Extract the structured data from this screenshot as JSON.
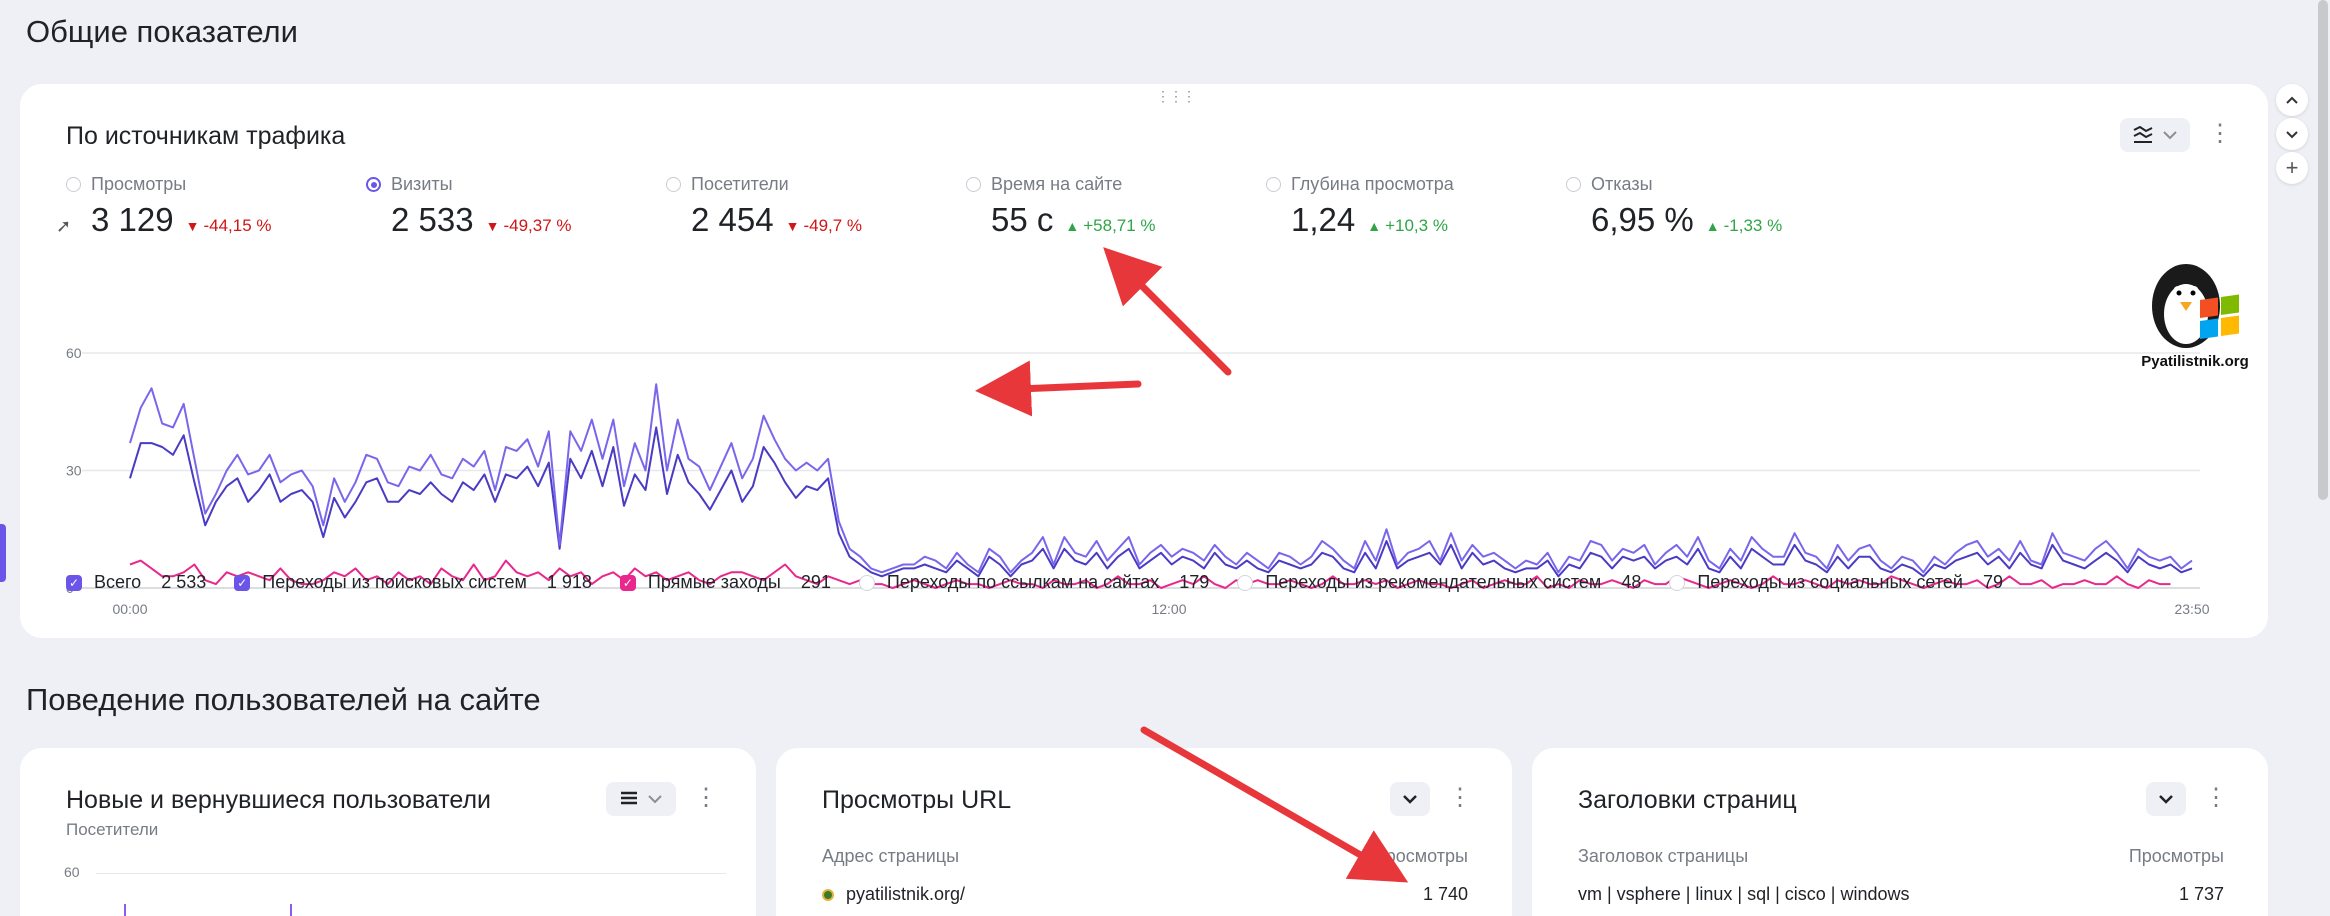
{
  "section1_title": "Общие показатели",
  "card1": {
    "title": "По источникам трафика",
    "metrics": [
      {
        "label": "Просмотры",
        "value": "3 129",
        "change": "-44,15 %",
        "dir": "down",
        "selected": false
      },
      {
        "label": "Визиты",
        "value": "2 533",
        "change": "-49,37 %",
        "dir": "down",
        "selected": true
      },
      {
        "label": "Посетители",
        "value": "2 454",
        "change": "-49,7 %",
        "dir": "down",
        "selected": false
      },
      {
        "label": "Время на сайте",
        "value": "55 с",
        "change": "+58,71 %",
        "dir": "up",
        "selected": false
      },
      {
        "label": "Глубина просмотра",
        "value": "1,24",
        "change": "+10,3 %",
        "dir": "up",
        "selected": false
      },
      {
        "label": "Отказы",
        "value": "6,95 %",
        "change": "-1,33 %",
        "dir": "up",
        "selected": false
      }
    ],
    "legend": [
      {
        "label": "Всего",
        "count": "2 533",
        "checked": true,
        "color": "#6a55e8"
      },
      {
        "label": "Переходы из поисковых систем",
        "count": "1 918",
        "checked": true,
        "color": "#6a55e8"
      },
      {
        "label": "Прямые заходы",
        "count": "291",
        "checked": true,
        "color": "#e8288c"
      },
      {
        "label": "Переходы по ссылкам на сайтах",
        "count": "179",
        "checked": false,
        "color": "#d2d5da"
      },
      {
        "label": "Переходы из рекомендательных систем",
        "count": "48",
        "checked": false,
        "color": "#d2d5da"
      },
      {
        "label": "Переходы из социальных сетей",
        "count": "79",
        "checked": false,
        "color": "#d2d5da"
      }
    ]
  },
  "chart_data": {
    "type": "line",
    "y_ticks": [
      "60",
      "30",
      "0"
    ],
    "x_ticks": [
      "00:00",
      "12:00",
      "23:50"
    ],
    "ylim": [
      0,
      60
    ],
    "grid": true,
    "series": [
      {
        "name": "Всего",
        "color": "#7a66ec",
        "values": [
          37,
          46,
          51,
          42,
          41,
          47,
          33,
          19,
          24,
          30,
          34,
          29,
          30,
          34,
          27,
          29,
          30,
          26,
          16,
          28,
          22,
          27,
          34,
          33,
          27,
          26,
          31,
          30,
          34,
          29,
          28,
          33,
          31,
          35,
          25,
          36,
          35,
          38,
          31,
          40,
          11,
          40,
          35,
          43,
          33,
          43,
          26,
          37,
          30,
          52,
          30,
          43,
          33,
          31,
          25,
          31,
          37,
          28,
          33,
          44,
          38,
          33,
          30,
          32,
          30,
          33,
          17,
          10,
          8,
          5,
          4,
          5,
          6,
          6,
          8,
          7,
          5,
          9,
          6,
          4,
          10,
          8,
          4,
          7,
          9,
          13,
          6,
          13,
          9,
          8,
          12,
          7,
          10,
          13,
          6,
          9,
          11,
          8,
          10,
          9,
          7,
          11,
          8,
          6,
          9,
          7,
          5,
          9,
          8,
          6,
          8,
          12,
          10,
          7,
          5,
          12,
          7,
          15,
          6,
          9,
          10,
          12,
          7,
          14,
          7,
          11,
          8,
          9,
          7,
          5,
          7,
          6,
          9,
          4,
          8,
          7,
          12,
          11,
          7,
          10,
          9,
          11,
          6,
          9,
          11,
          8,
          13,
          7,
          5,
          10,
          7,
          13,
          10,
          8,
          8,
          14,
          9,
          8,
          5,
          11,
          7,
          10,
          11,
          7,
          5,
          8,
          7,
          4,
          8,
          6,
          9,
          11,
          12,
          8,
          10,
          7,
          12,
          7,
          6,
          14,
          9,
          8,
          7,
          10,
          12,
          9,
          5,
          10,
          8,
          7,
          8,
          5,
          7
        ]
      },
      {
        "name": "Переходы из поисковых систем",
        "color": "#4a3bc4",
        "values": [
          28,
          37,
          37,
          36,
          34,
          39,
          27,
          16,
          22,
          26,
          28,
          22,
          25,
          29,
          22,
          24,
          25,
          22,
          13,
          23,
          18,
          22,
          27,
          28,
          22,
          22,
          25,
          24,
          27,
          24,
          22,
          27,
          25,
          29,
          22,
          29,
          28,
          31,
          26,
          32,
          10,
          33,
          28,
          35,
          26,
          36,
          21,
          29,
          25,
          41,
          24,
          34,
          27,
          24,
          20,
          25,
          30,
          22,
          26,
          36,
          32,
          27,
          23,
          26,
          25,
          28,
          14,
          8,
          6,
          4,
          3,
          4,
          5,
          5,
          6,
          5,
          4,
          7,
          5,
          3,
          8,
          6,
          3,
          6,
          7,
          10,
          5,
          10,
          7,
          6,
          9,
          5,
          8,
          10,
          5,
          7,
          9,
          6,
          8,
          7,
          5,
          9,
          6,
          5,
          7,
          5,
          4,
          7,
          6,
          5,
          6,
          9,
          8,
          5,
          4,
          9,
          5,
          12,
          5,
          7,
          8,
          9,
          6,
          11,
          5,
          9,
          6,
          7,
          5,
          4,
          5,
          5,
          7,
          3,
          6,
          5,
          9,
          8,
          5,
          8,
          7,
          8,
          5,
          7,
          8,
          6,
          10,
          5,
          4,
          8,
          5,
          10,
          8,
          6,
          6,
          11,
          7,
          6,
          4,
          8,
          5,
          8,
          8,
          5,
          4,
          6,
          5,
          3,
          6,
          5,
          7,
          8,
          9,
          6,
          8,
          5,
          9,
          6,
          5,
          11,
          7,
          6,
          5,
          7,
          9,
          7,
          4,
          8,
          6,
          5,
          6,
          4,
          5
        ]
      },
      {
        "name": "Прямые заходы",
        "color": "#e8288c",
        "values": [
          6,
          7,
          5,
          3,
          3,
          4,
          6,
          2,
          1,
          4,
          3,
          4,
          3,
          2,
          5,
          2,
          1,
          1,
          2,
          4,
          3,
          5,
          2,
          3,
          1,
          4,
          2,
          3,
          1,
          5,
          3,
          2,
          6,
          2,
          3,
          7,
          4,
          3,
          4,
          2,
          5,
          3,
          4,
          1,
          3,
          4,
          2,
          5,
          3,
          4,
          2,
          3,
          4,
          2,
          1,
          3,
          4,
          4,
          3,
          2,
          4,
          6,
          3,
          2,
          1,
          3,
          2,
          1,
          2,
          1,
          1,
          0,
          1,
          2,
          1,
          0,
          1,
          2,
          1,
          1,
          0,
          1,
          2,
          1,
          1,
          0,
          2,
          1,
          1,
          2,
          0,
          1,
          3,
          1,
          1,
          2,
          0,
          1,
          2,
          1,
          3,
          1,
          0,
          2,
          1,
          2,
          1,
          1,
          2,
          1,
          0,
          1,
          3,
          1,
          1,
          2,
          1,
          2,
          0,
          1,
          2,
          1,
          1,
          0,
          1,
          2,
          0,
          1,
          2,
          1,
          1,
          3,
          0,
          1,
          0,
          2,
          1,
          1,
          2,
          1,
          0,
          2,
          1,
          1,
          3,
          2,
          1,
          0,
          1,
          2,
          1,
          0,
          1,
          3,
          1,
          1,
          2,
          1,
          0,
          2,
          1,
          2,
          1,
          1,
          3,
          2,
          1,
          0,
          1,
          2,
          1,
          1,
          2,
          0,
          1,
          3,
          1,
          1,
          2,
          0,
          1,
          1,
          2,
          1,
          1,
          3,
          1,
          0,
          2,
          1,
          1
        ]
      }
    ]
  },
  "section2_title": "Поведение пользователей на сайте",
  "card2": {
    "title": "Новые и вернувшиеся пользователи",
    "subtitle": "Посетители",
    "y_tick": "60"
  },
  "card3": {
    "title": "Просмотры URL",
    "col1": "Адрес страницы",
    "col2": "Просмотры",
    "row_label": "pyatilistnik.org/",
    "row_value": "1 740"
  },
  "card4": {
    "title": "Заголовки страниц",
    "col1": "Заголовок страницы",
    "col2": "Просмотры",
    "row_label": "vm | vsphere | linux | sql | cisco | windows",
    "row_value": "1 737"
  },
  "watermark": "Pyatilistnik.org",
  "colors": {
    "accent": "#6a55e8",
    "direct": "#e8288c",
    "down": "#d01616",
    "up": "#2fa548",
    "arrow": "#e8373b"
  }
}
